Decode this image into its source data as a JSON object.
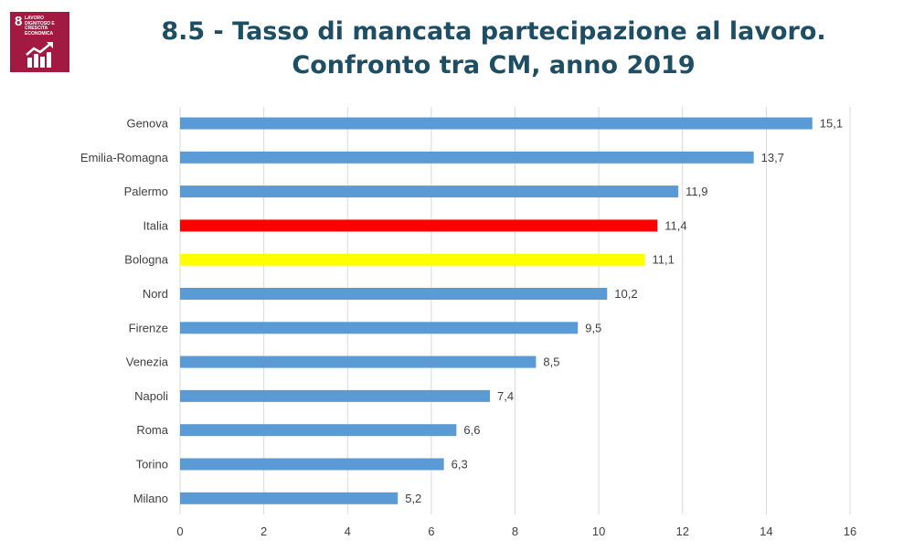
{
  "logo": {
    "number": "8",
    "text": "LAVORO DIGNITOSO E CRESCITA ECONOMICA",
    "icon": "bar-chart-growth-icon",
    "color": "#a21942"
  },
  "title": {
    "line1": "8.5 - Tasso di mancata partecipazione al lavoro.",
    "line2": "Confronto tra CM, anno 2019"
  },
  "chart_data": {
    "type": "bar",
    "orientation": "horizontal",
    "categories": [
      "Genova",
      "Emilia-Romagna",
      "Palermo",
      "Italia",
      "Bologna",
      "Nord",
      "Firenze",
      "Venezia",
      "Napoli",
      "Roma",
      "Torino",
      "Milano"
    ],
    "values": [
      15.1,
      13.7,
      11.9,
      11.4,
      11.1,
      10.2,
      9.5,
      8.5,
      7.4,
      6.6,
      6.3,
      5.2
    ],
    "value_labels": [
      "15,1",
      "13,7",
      "11,9",
      "11,4",
      "11,1",
      "10,2",
      "9,5",
      "8,5",
      "7,4",
      "6,6",
      "6,3",
      "5,2"
    ],
    "bar_colors": [
      "#5b9bd5",
      "#5b9bd5",
      "#5b9bd5",
      "#ff0000",
      "#ffff00",
      "#5b9bd5",
      "#5b9bd5",
      "#5b9bd5",
      "#5b9bd5",
      "#5b9bd5",
      "#5b9bd5",
      "#5b9bd5"
    ],
    "xlim": [
      0,
      16
    ],
    "xticks": [
      0,
      2,
      4,
      6,
      8,
      10,
      12,
      14,
      16
    ],
    "grid": true
  }
}
